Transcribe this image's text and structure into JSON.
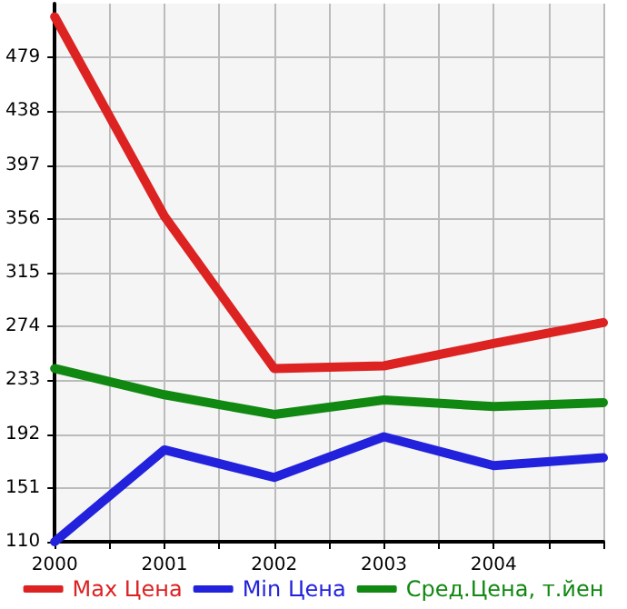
{
  "chart_data": {
    "type": "line",
    "x": [
      2000,
      2001,
      2002,
      2003,
      2004,
      2005
    ],
    "series": [
      {
        "name": "Max Цена",
        "color": "#dd2222",
        "values": [
          510,
          358,
          242,
          244,
          261,
          277
        ]
      },
      {
        "name": "Min Цена",
        "color": "#2222dd",
        "values": [
          110,
          180,
          159,
          190,
          168,
          174
        ]
      },
      {
        "name": "Сред.Цена, т.йен",
        "color": "#118811",
        "values": [
          242,
          222,
          207,
          218,
          213,
          216
        ]
      }
    ],
    "xlim": [
      2000,
      2005
    ],
    "xticks": [
      2000,
      {
        "value": 2000.5,
        "label": null
      },
      2001,
      {
        "value": 2001.5,
        "label": null
      },
      2002,
      {
        "value": 2002.5,
        "label": null
      },
      2003,
      {
        "value": 2003.5,
        "label": null
      },
      2004,
      {
        "value": 2004.5,
        "label": null
      },
      {
        "value": 2005,
        "label": null
      }
    ],
    "ylim": [
      110,
      520
    ],
    "yticks": [
      110,
      151,
      192,
      233,
      274,
      315,
      356,
      397,
      438,
      479
    ],
    "grid": true,
    "legend": "bottom",
    "marker": "none",
    "line_style": "solid"
  }
}
